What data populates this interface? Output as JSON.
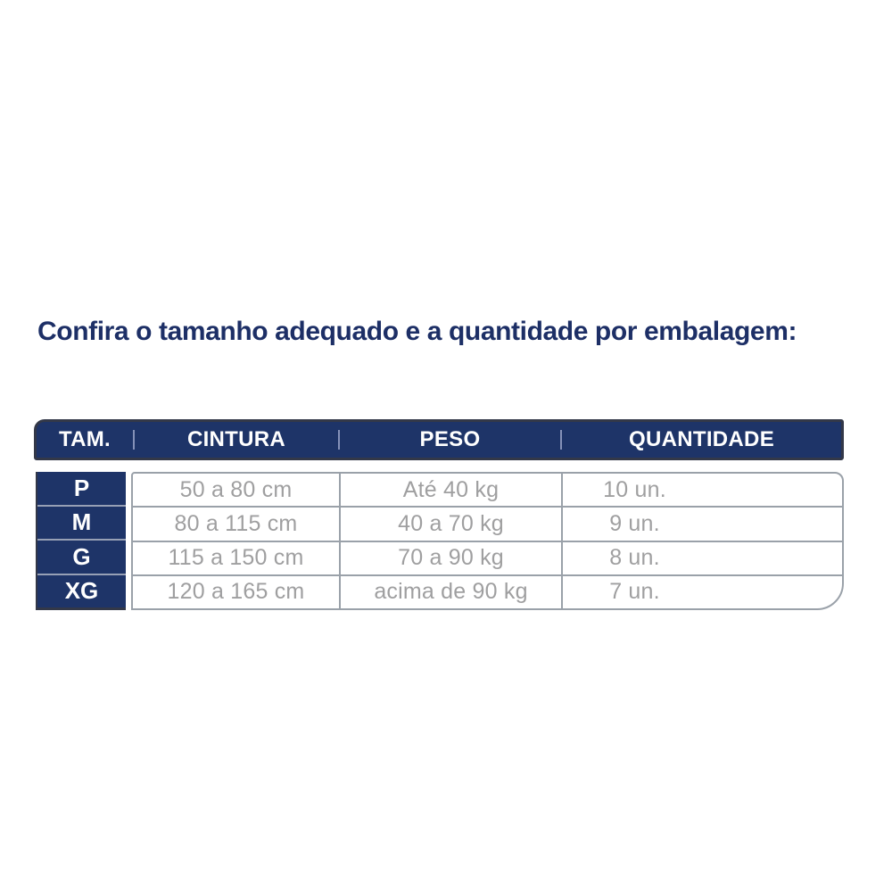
{
  "chart_data": {
    "type": "table",
    "title": "Confira o tamanho adequado e a quantidade por embalagem:",
    "columns": [
      "TAM.",
      "CINTURA",
      "PESO",
      "QUANTIDADE"
    ],
    "rows": [
      [
        "P",
        "50 a 80 cm",
        "Até 40 kg",
        "10 un."
      ],
      [
        "M",
        "80 a 115 cm",
        "40 a 70 kg",
        "9 un."
      ],
      [
        "G",
        "115 a 150 cm",
        "70 a 90 kg",
        "8 un."
      ],
      [
        "XG",
        "120 a 165 cm",
        "acima de 90 kg",
        "7 un."
      ]
    ],
    "legend_position": "none",
    "grid": true
  },
  "colors": {
    "navy": "#1e3468",
    "navy_outline": "#333848",
    "title_text": "#1d2f66",
    "header_text": "#ffffff",
    "header_divider": "#8591b8",
    "data_text": "#9f9fa0",
    "grid_line": "#9aa1a9",
    "background": "#ffffff"
  }
}
